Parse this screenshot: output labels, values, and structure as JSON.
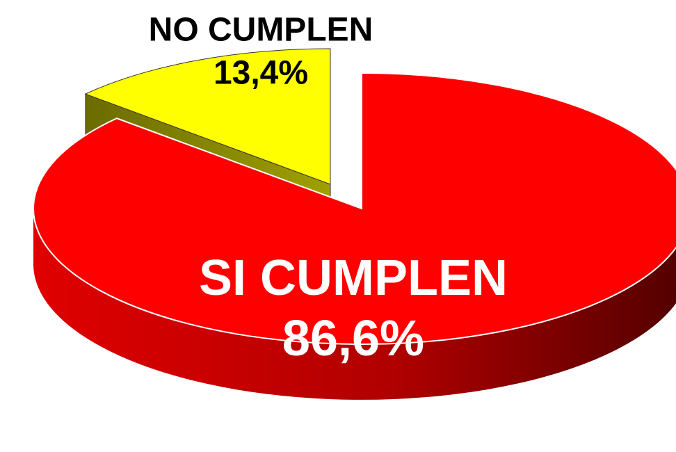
{
  "chart_data": {
    "type": "pie",
    "categories": [
      "SI CUMPLEN",
      "NO CUMPLEN"
    ],
    "values": [
      86.6,
      13.4
    ],
    "value_labels": [
      "86,6%",
      "13,4%"
    ],
    "colors": [
      "#ff0000",
      "#ffff00"
    ]
  }
}
